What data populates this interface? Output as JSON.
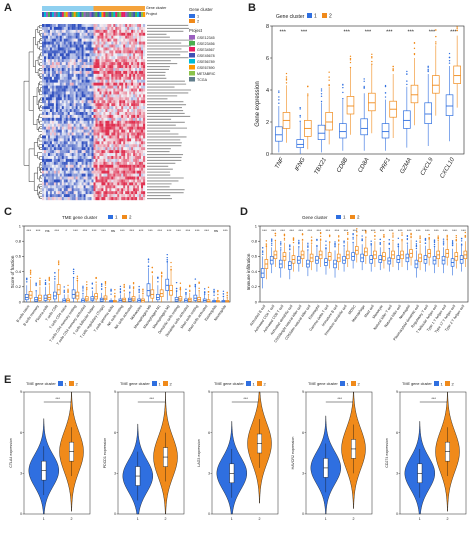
{
  "panels": {
    "a": "A",
    "b": "B",
    "c": "C",
    "d": "D",
    "e": "E"
  },
  "colors": {
    "cluster1": "#2f6fe0",
    "cluster2": "#f08a1a",
    "heat_high": "#e03050",
    "heat_low": "#3050c0",
    "heat_mid": "#f4f4f8"
  },
  "heatmap": {
    "legend_gene_cluster_title": "Gene cluster",
    "legend_gene_cluster_items": [
      "1",
      "2"
    ],
    "legend_project_title": "Project",
    "legend_project_items": [
      "GSE12345",
      "GSE23456",
      "GSE34567",
      "GSE45678",
      "GSE56789",
      "GSE67890",
      "METABRIC",
      "TCGA"
    ],
    "row_annotations": [
      "Gene cluster",
      "Project"
    ]
  },
  "chart_data": [
    {
      "type": "box",
      "panel": "B",
      "legend_title": "Gene cluster",
      "legend": [
        "1",
        "2"
      ],
      "ylabel": "Gene expression",
      "ylim": [
        0,
        8
      ],
      "yticks": [
        0,
        2,
        4,
        6,
        8
      ],
      "categories": [
        "TNF",
        "IFNG",
        "TBX21",
        "CD8B",
        "CD8A",
        "PRF1",
        "GZMA",
        "CXCL9",
        "CXCL10"
      ],
      "significance": [
        "***",
        "***",
        "",
        "***",
        "***",
        "***",
        "***",
        "***",
        "***"
      ],
      "series": [
        {
          "name": "1",
          "median": [
            1.2,
            0.6,
            1.3,
            1.4,
            1.6,
            1.4,
            2.1,
            2.5,
            3.0
          ],
          "q1": [
            0.8,
            0.4,
            0.9,
            1.0,
            1.2,
            1.0,
            1.6,
            1.9,
            2.4
          ],
          "q3": [
            1.7,
            0.9,
            1.8,
            1.9,
            2.2,
            1.9,
            2.7,
            3.2,
            3.7
          ],
          "lo": [
            0.1,
            0.0,
            0.1,
            0.2,
            0.2,
            0.2,
            0.4,
            0.5,
            0.8
          ],
          "hi": [
            3.0,
            2.0,
            3.2,
            3.4,
            3.8,
            3.4,
            4.2,
            5.0,
            5.5
          ]
        },
        {
          "name": "2",
          "median": [
            2.1,
            1.6,
            2.0,
            3.0,
            3.2,
            2.8,
            3.7,
            4.3,
            4.9
          ],
          "q1": [
            1.6,
            1.1,
            1.5,
            2.5,
            2.7,
            2.3,
            3.2,
            3.8,
            4.4
          ],
          "q3": [
            2.6,
            2.1,
            2.6,
            3.6,
            3.8,
            3.3,
            4.3,
            4.9,
            5.5
          ],
          "lo": [
            0.7,
            0.3,
            0.6,
            1.2,
            1.3,
            1.0,
            1.8,
            2.4,
            2.9
          ],
          "hi": [
            4.3,
            3.6,
            4.2,
            5.4,
            5.6,
            5.0,
            6.0,
            6.8,
            7.4
          ]
        }
      ]
    },
    {
      "type": "box",
      "panel": "C",
      "legend_title": "TME gene cluster",
      "legend": [
        "1",
        "2"
      ],
      "ylabel": "Score of fraction",
      "ylim": [
        0,
        1
      ],
      "yticks": [
        0,
        0.2,
        0.4,
        0.6,
        0.8,
        1
      ],
      "categories": [
        "B cells naive",
        "B cells memory",
        "Plasma cells",
        "T cells CD8",
        "T cells CD4 naive",
        "T cells CD4 memory resting",
        "T cells CD4 memory activated",
        "T cells follicular helper",
        "T cells regulatory (Tregs)",
        "T cells gamma delta",
        "NK cells resting",
        "NK cells activated",
        "Monocytes",
        "Macrophages M0",
        "Macrophages M1",
        "Macrophages M2",
        "Dendritic cells resting",
        "Dendritic cells activated",
        "Mast cells resting",
        "Mast cells activated",
        "Eosinophils",
        "Neutrophils"
      ],
      "significance": [
        "***",
        "***",
        "ns",
        "***",
        "*",
        "***",
        "***",
        "***",
        "***",
        "ns",
        "***",
        "***",
        "***",
        "***",
        "***",
        "***",
        "***",
        "***",
        "***",
        "***",
        "ns",
        "***"
      ],
      "series": [
        {
          "name": "1",
          "median": [
            0.06,
            0.03,
            0.05,
            0.08,
            0.02,
            0.1,
            0.02,
            0.04,
            0.03,
            0.01,
            0.02,
            0.03,
            0.02,
            0.15,
            0.06,
            0.22,
            0.03,
            0.02,
            0.05,
            0.02,
            0.01,
            0.01
          ],
          "q1": [
            0.03,
            0.01,
            0.02,
            0.04,
            0.0,
            0.05,
            0.0,
            0.02,
            0.01,
            0.0,
            0.0,
            0.01,
            0.0,
            0.08,
            0.03,
            0.15,
            0.01,
            0.0,
            0.02,
            0.0,
            0.0,
            0.0
          ],
          "q3": [
            0.1,
            0.06,
            0.09,
            0.13,
            0.04,
            0.16,
            0.04,
            0.07,
            0.05,
            0.02,
            0.04,
            0.05,
            0.04,
            0.24,
            0.1,
            0.3,
            0.06,
            0.04,
            0.09,
            0.04,
            0.02,
            0.02
          ],
          "lo": [
            0.0,
            0.0,
            0.0,
            0.0,
            0.0,
            0.0,
            0.0,
            0.0,
            0.0,
            0.0,
            0.0,
            0.0,
            0.0,
            0.0,
            0.0,
            0.02,
            0.0,
            0.0,
            0.0,
            0.0,
            0.0,
            0.0
          ],
          "hi": [
            0.22,
            0.14,
            0.2,
            0.28,
            0.1,
            0.32,
            0.1,
            0.15,
            0.12,
            0.05,
            0.1,
            0.12,
            0.1,
            0.45,
            0.22,
            0.52,
            0.14,
            0.1,
            0.2,
            0.1,
            0.05,
            0.05
          ]
        },
        {
          "name": "2",
          "median": [
            0.09,
            0.05,
            0.06,
            0.16,
            0.02,
            0.08,
            0.04,
            0.07,
            0.05,
            0.01,
            0.03,
            0.04,
            0.02,
            0.1,
            0.11,
            0.15,
            0.04,
            0.03,
            0.03,
            0.01,
            0.01,
            0.01
          ],
          "q1": [
            0.05,
            0.02,
            0.03,
            0.1,
            0.0,
            0.04,
            0.02,
            0.04,
            0.03,
            0.0,
            0.01,
            0.02,
            0.0,
            0.05,
            0.07,
            0.09,
            0.02,
            0.01,
            0.01,
            0.0,
            0.0,
            0.0
          ],
          "q3": [
            0.14,
            0.09,
            0.1,
            0.23,
            0.04,
            0.13,
            0.07,
            0.11,
            0.08,
            0.02,
            0.05,
            0.07,
            0.04,
            0.16,
            0.16,
            0.22,
            0.07,
            0.05,
            0.06,
            0.03,
            0.02,
            0.02
          ],
          "lo": [
            0.0,
            0.0,
            0.0,
            0.0,
            0.0,
            0.0,
            0.0,
            0.0,
            0.0,
            0.0,
            0.0,
            0.0,
            0.0,
            0.0,
            0.0,
            0.0,
            0.0,
            0.0,
            0.0,
            0.0,
            0.0,
            0.0
          ],
          "hi": [
            0.3,
            0.2,
            0.22,
            0.42,
            0.1,
            0.28,
            0.16,
            0.24,
            0.18,
            0.05,
            0.12,
            0.16,
            0.1,
            0.35,
            0.32,
            0.42,
            0.16,
            0.12,
            0.14,
            0.08,
            0.05,
            0.05
          ]
        }
      ]
    },
    {
      "type": "box",
      "panel": "D",
      "legend_title": "Gene cluster",
      "legend": [
        "1",
        "2"
      ],
      "ylabel": "Immune infiltration",
      "ylim": [
        0,
        1
      ],
      "yticks": [
        0,
        0.2,
        0.4,
        0.6,
        0.8,
        1
      ],
      "categories": [
        "Activated B cell",
        "Activated CD4 T cell",
        "Activated CD8 T cell",
        "Activated dendritic cell",
        "CD56bright natural killer cell",
        "CD56dim natural killer cell",
        "Eosinophil",
        "Gamma delta T cell",
        "Immature B cell",
        "Immature dendritic cell",
        "MDSC",
        "Macrophage",
        "Mast cell",
        "Monocyte",
        "Natural killer T cell",
        "Natural killer cell",
        "Neutrophil",
        "Plasmacytoid dendritic cell",
        "Regulatory T cell",
        "T follicular helper cell",
        "Type 1 T helper cell",
        "Type 17 T helper cell",
        "Type 2 T helper cell"
      ],
      "significance": [
        "***",
        "***",
        "***",
        "***",
        "***",
        "***",
        "***",
        "***",
        "***",
        "***",
        "***",
        "***",
        "***",
        "***",
        "***",
        "***",
        "***",
        "***",
        "***",
        "***",
        "***",
        "***",
        "***"
      ],
      "series": [
        {
          "name": "1",
          "median": [
            0.38,
            0.55,
            0.5,
            0.48,
            0.55,
            0.5,
            0.55,
            0.52,
            0.5,
            0.55,
            0.6,
            0.58,
            0.56,
            0.56,
            0.54,
            0.56,
            0.58,
            0.5,
            0.56,
            0.55,
            0.55,
            0.52,
            0.56
          ],
          "q1": [
            0.32,
            0.5,
            0.45,
            0.43,
            0.51,
            0.46,
            0.51,
            0.48,
            0.45,
            0.51,
            0.55,
            0.53,
            0.51,
            0.52,
            0.5,
            0.52,
            0.53,
            0.45,
            0.51,
            0.5,
            0.5,
            0.47,
            0.51
          ],
          "q3": [
            0.44,
            0.6,
            0.55,
            0.53,
            0.6,
            0.55,
            0.6,
            0.57,
            0.55,
            0.6,
            0.65,
            0.63,
            0.61,
            0.61,
            0.58,
            0.61,
            0.63,
            0.55,
            0.61,
            0.6,
            0.6,
            0.57,
            0.61
          ],
          "lo": [
            0.18,
            0.38,
            0.32,
            0.3,
            0.4,
            0.34,
            0.4,
            0.36,
            0.32,
            0.4,
            0.44,
            0.42,
            0.4,
            0.42,
            0.4,
            0.42,
            0.42,
            0.32,
            0.4,
            0.38,
            0.38,
            0.35,
            0.4
          ],
          "hi": [
            0.6,
            0.72,
            0.68,
            0.66,
            0.72,
            0.68,
            0.72,
            0.7,
            0.68,
            0.72,
            0.78,
            0.76,
            0.74,
            0.72,
            0.7,
            0.72,
            0.76,
            0.68,
            0.74,
            0.72,
            0.72,
            0.7,
            0.74
          ]
        },
        {
          "name": "2",
          "median": [
            0.5,
            0.62,
            0.6,
            0.56,
            0.62,
            0.58,
            0.62,
            0.6,
            0.58,
            0.62,
            0.68,
            0.66,
            0.62,
            0.6,
            0.62,
            0.62,
            0.64,
            0.58,
            0.64,
            0.62,
            0.64,
            0.6,
            0.62
          ],
          "q1": [
            0.44,
            0.57,
            0.55,
            0.51,
            0.57,
            0.53,
            0.57,
            0.55,
            0.53,
            0.57,
            0.63,
            0.61,
            0.57,
            0.55,
            0.57,
            0.57,
            0.59,
            0.53,
            0.59,
            0.57,
            0.59,
            0.55,
            0.57
          ],
          "q3": [
            0.56,
            0.67,
            0.65,
            0.61,
            0.67,
            0.63,
            0.67,
            0.65,
            0.63,
            0.67,
            0.73,
            0.71,
            0.67,
            0.65,
            0.67,
            0.67,
            0.69,
            0.63,
            0.69,
            0.67,
            0.69,
            0.65,
            0.67
          ],
          "lo": [
            0.3,
            0.46,
            0.44,
            0.4,
            0.46,
            0.42,
            0.46,
            0.44,
            0.42,
            0.46,
            0.52,
            0.5,
            0.46,
            0.44,
            0.46,
            0.46,
            0.48,
            0.42,
            0.48,
            0.46,
            0.48,
            0.44,
            0.46
          ],
          "hi": [
            0.72,
            0.8,
            0.78,
            0.74,
            0.8,
            0.76,
            0.8,
            0.78,
            0.76,
            0.8,
            0.86,
            0.84,
            0.8,
            0.78,
            0.8,
            0.8,
            0.82,
            0.76,
            0.82,
            0.8,
            0.82,
            0.78,
            0.8
          ]
        }
      ]
    },
    {
      "type": "violin",
      "panel": "E",
      "legend_title": "TME gene cluster",
      "legend": [
        "1",
        "2"
      ],
      "significance": "***",
      "subplots": [
        {
          "ylabel": "CTLA4 expression",
          "ylim": [
            0,
            9
          ],
          "yticks": [
            0,
            3,
            6,
            9
          ],
          "median": [
            3.2,
            4.6
          ]
        },
        {
          "ylabel": "PDCD1 expression",
          "ylim": [
            0,
            9
          ],
          "yticks": [
            0,
            3,
            6,
            9
          ],
          "median": [
            2.8,
            4.2
          ]
        },
        {
          "ylabel": "LAG3 expression",
          "ylim": [
            0,
            9
          ],
          "yticks": [
            0,
            3,
            6,
            9
          ],
          "median": [
            3.0,
            5.2
          ]
        },
        {
          "ylabel": "HAVCR2 expression",
          "ylim": [
            0,
            9
          ],
          "yticks": [
            0,
            3,
            6,
            9
          ],
          "median": [
            3.4,
            4.8
          ]
        },
        {
          "ylabel": "CD274 expression",
          "ylim": [
            0,
            9
          ],
          "yticks": [
            0,
            3,
            6,
            9
          ],
          "median": [
            3.0,
            4.6
          ]
        }
      ]
    }
  ]
}
